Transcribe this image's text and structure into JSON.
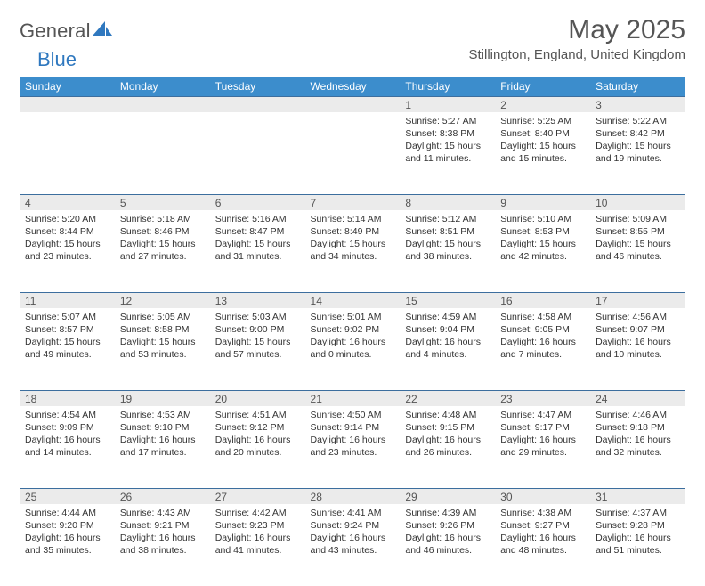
{
  "brand": {
    "name1": "General",
    "name2": "Blue",
    "name1_color": "#555555",
    "name2_color": "#2f78bf",
    "sail_color": "#2f78bf"
  },
  "title": {
    "month": "May 2025",
    "location": "Stillington, England, United Kingdom"
  },
  "calendar": {
    "header_bg": "#3c8dcc",
    "header_fg": "#ffffff",
    "daynum_bg": "#ebebeb",
    "rule_color": "#3c6e9e",
    "columns": [
      "Sunday",
      "Monday",
      "Tuesday",
      "Wednesday",
      "Thursday",
      "Friday",
      "Saturday"
    ],
    "weeks": [
      [
        null,
        null,
        null,
        null,
        {
          "n": "1",
          "sunrise": "5:27 AM",
          "sunset": "8:38 PM",
          "daylight": "15 hours and 11 minutes."
        },
        {
          "n": "2",
          "sunrise": "5:25 AM",
          "sunset": "8:40 PM",
          "daylight": "15 hours and 15 minutes."
        },
        {
          "n": "3",
          "sunrise": "5:22 AM",
          "sunset": "8:42 PM",
          "daylight": "15 hours and 19 minutes."
        }
      ],
      [
        {
          "n": "4",
          "sunrise": "5:20 AM",
          "sunset": "8:44 PM",
          "daylight": "15 hours and 23 minutes."
        },
        {
          "n": "5",
          "sunrise": "5:18 AM",
          "sunset": "8:46 PM",
          "daylight": "15 hours and 27 minutes."
        },
        {
          "n": "6",
          "sunrise": "5:16 AM",
          "sunset": "8:47 PM",
          "daylight": "15 hours and 31 minutes."
        },
        {
          "n": "7",
          "sunrise": "5:14 AM",
          "sunset": "8:49 PM",
          "daylight": "15 hours and 34 minutes."
        },
        {
          "n": "8",
          "sunrise": "5:12 AM",
          "sunset": "8:51 PM",
          "daylight": "15 hours and 38 minutes."
        },
        {
          "n": "9",
          "sunrise": "5:10 AM",
          "sunset": "8:53 PM",
          "daylight": "15 hours and 42 minutes."
        },
        {
          "n": "10",
          "sunrise": "5:09 AM",
          "sunset": "8:55 PM",
          "daylight": "15 hours and 46 minutes."
        }
      ],
      [
        {
          "n": "11",
          "sunrise": "5:07 AM",
          "sunset": "8:57 PM",
          "daylight": "15 hours and 49 minutes."
        },
        {
          "n": "12",
          "sunrise": "5:05 AM",
          "sunset": "8:58 PM",
          "daylight": "15 hours and 53 minutes."
        },
        {
          "n": "13",
          "sunrise": "5:03 AM",
          "sunset": "9:00 PM",
          "daylight": "15 hours and 57 minutes."
        },
        {
          "n": "14",
          "sunrise": "5:01 AM",
          "sunset": "9:02 PM",
          "daylight": "16 hours and 0 minutes."
        },
        {
          "n": "15",
          "sunrise": "4:59 AM",
          "sunset": "9:04 PM",
          "daylight": "16 hours and 4 minutes."
        },
        {
          "n": "16",
          "sunrise": "4:58 AM",
          "sunset": "9:05 PM",
          "daylight": "16 hours and 7 minutes."
        },
        {
          "n": "17",
          "sunrise": "4:56 AM",
          "sunset": "9:07 PM",
          "daylight": "16 hours and 10 minutes."
        }
      ],
      [
        {
          "n": "18",
          "sunrise": "4:54 AM",
          "sunset": "9:09 PM",
          "daylight": "16 hours and 14 minutes."
        },
        {
          "n": "19",
          "sunrise": "4:53 AM",
          "sunset": "9:10 PM",
          "daylight": "16 hours and 17 minutes."
        },
        {
          "n": "20",
          "sunrise": "4:51 AM",
          "sunset": "9:12 PM",
          "daylight": "16 hours and 20 minutes."
        },
        {
          "n": "21",
          "sunrise": "4:50 AM",
          "sunset": "9:14 PM",
          "daylight": "16 hours and 23 minutes."
        },
        {
          "n": "22",
          "sunrise": "4:48 AM",
          "sunset": "9:15 PM",
          "daylight": "16 hours and 26 minutes."
        },
        {
          "n": "23",
          "sunrise": "4:47 AM",
          "sunset": "9:17 PM",
          "daylight": "16 hours and 29 minutes."
        },
        {
          "n": "24",
          "sunrise": "4:46 AM",
          "sunset": "9:18 PM",
          "daylight": "16 hours and 32 minutes."
        }
      ],
      [
        {
          "n": "25",
          "sunrise": "4:44 AM",
          "sunset": "9:20 PM",
          "daylight": "16 hours and 35 minutes."
        },
        {
          "n": "26",
          "sunrise": "4:43 AM",
          "sunset": "9:21 PM",
          "daylight": "16 hours and 38 minutes."
        },
        {
          "n": "27",
          "sunrise": "4:42 AM",
          "sunset": "9:23 PM",
          "daylight": "16 hours and 41 minutes."
        },
        {
          "n": "28",
          "sunrise": "4:41 AM",
          "sunset": "9:24 PM",
          "daylight": "16 hours and 43 minutes."
        },
        {
          "n": "29",
          "sunrise": "4:39 AM",
          "sunset": "9:26 PM",
          "daylight": "16 hours and 46 minutes."
        },
        {
          "n": "30",
          "sunrise": "4:38 AM",
          "sunset": "9:27 PM",
          "daylight": "16 hours and 48 minutes."
        },
        {
          "n": "31",
          "sunrise": "4:37 AM",
          "sunset": "9:28 PM",
          "daylight": "16 hours and 51 minutes."
        }
      ]
    ]
  },
  "labels": {
    "sunrise_prefix": "Sunrise: ",
    "sunset_prefix": "Sunset: ",
    "daylight_prefix": "Daylight: "
  }
}
